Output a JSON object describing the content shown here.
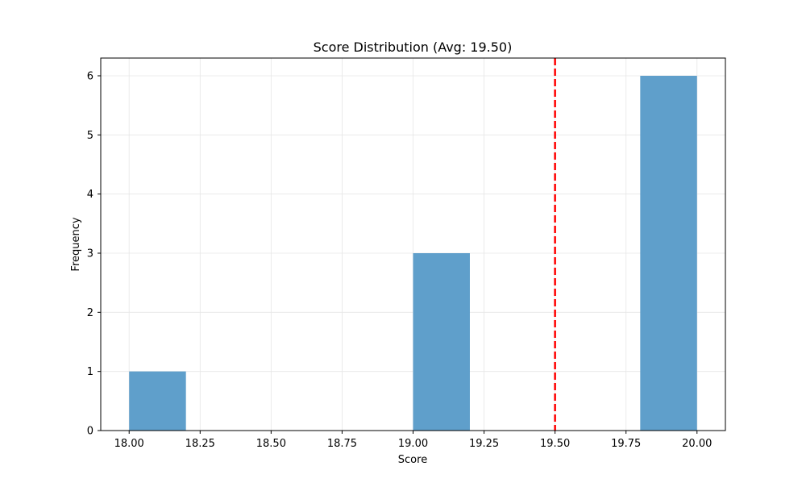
{
  "chart_data": {
    "type": "bar",
    "title": "Score Distribution (Avg: 19.50)",
    "xlabel": "Score",
    "ylabel": "Frequency",
    "xlim": [
      17.9,
      20.1
    ],
    "ylim": [
      0,
      6.3
    ],
    "xticks": [
      18.0,
      18.25,
      18.5,
      18.75,
      19.0,
      19.25,
      19.5,
      19.75,
      20.0
    ],
    "xtick_labels": [
      "18.00",
      "18.25",
      "18.50",
      "18.75",
      "19.00",
      "19.25",
      "19.50",
      "19.75",
      "20.00"
    ],
    "yticks": [
      0,
      1,
      2,
      3,
      4,
      5,
      6
    ],
    "ytick_labels": [
      "0",
      "1",
      "2",
      "3",
      "4",
      "5",
      "6"
    ],
    "grid": true,
    "bins": [
      {
        "start": 18.0,
        "end": 18.2,
        "count": 1
      },
      {
        "start": 18.2,
        "end": 18.4,
        "count": 0
      },
      {
        "start": 18.4,
        "end": 18.6,
        "count": 0
      },
      {
        "start": 18.6,
        "end": 18.8,
        "count": 0
      },
      {
        "start": 18.8,
        "end": 19.0,
        "count": 0
      },
      {
        "start": 19.0,
        "end": 19.2,
        "count": 3
      },
      {
        "start": 19.2,
        "end": 19.4,
        "count": 0
      },
      {
        "start": 19.4,
        "end": 19.6,
        "count": 0
      },
      {
        "start": 19.6,
        "end": 19.8,
        "count": 0
      },
      {
        "start": 19.8,
        "end": 20.0,
        "count": 6
      }
    ],
    "mean_line": {
      "x": 19.5,
      "style": "dashed"
    },
    "colors": {
      "bar": "#5f9fcb",
      "mean_line": "#ff0000",
      "grid": "#e6e6e6",
      "axis": "#000000"
    }
  }
}
